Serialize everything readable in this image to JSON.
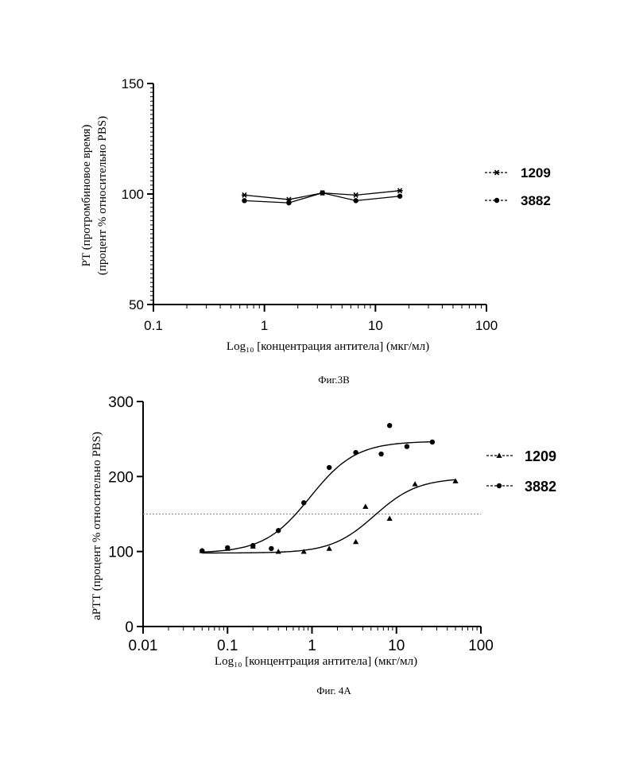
{
  "figures": [
    {
      "caption": "Фиг.3В",
      "legend": [
        "1209",
        "3882"
      ]
    },
    {
      "caption": "Фиг. 4А",
      "legend": [
        "1209",
        "3882"
      ]
    }
  ],
  "chart_data": [
    {
      "type": "line",
      "title": "",
      "xlabel": "Log₁₀ [концентрация антитела] (мкг/мл)",
      "ylabel_lines": [
        "PT (протромбиновое время)",
        "(процент % относительно PBS)"
      ],
      "xscale": "log",
      "xlim": [
        0.1,
        100
      ],
      "ylim": [
        50,
        150
      ],
      "x_ticks": [
        "0.1",
        "1",
        "10",
        "100"
      ],
      "y_ticks": [
        "50",
        "100",
        "150"
      ],
      "legend_position": "right",
      "series": [
        {
          "name": "1209",
          "marker": "star",
          "x": [
            0.66,
            1.66,
            3.33,
            6.66,
            16.6
          ],
          "y": [
            99.5,
            97.5,
            100.5,
            99.5,
            101.5
          ]
        },
        {
          "name": "3882",
          "marker": "circle",
          "x": [
            0.66,
            1.66,
            3.33,
            6.66,
            16.6
          ],
          "y": [
            97.0,
            96.0,
            100.5,
            97.0,
            99.0
          ]
        }
      ]
    },
    {
      "type": "scatter",
      "title": "",
      "xlabel": "Log₁₀ [концентрация антитела] (мкг/мл)",
      "ylabel": "aPTT (процент % относительно PBS)",
      "xscale": "log",
      "xlim": [
        0.01,
        100
      ],
      "ylim": [
        0,
        300
      ],
      "x_ticks": [
        "0.01",
        "0.1",
        "1",
        "10",
        "100"
      ],
      "y_ticks": [
        "0",
        "100",
        "200",
        "300"
      ],
      "reference_line_y": 150,
      "legend_position": "right",
      "series": [
        {
          "name": "1209",
          "marker": "triangle",
          "points": [
            [
              0.05,
              101
            ],
            [
              0.1,
              104
            ],
            [
              0.2,
              107
            ],
            [
              0.4,
              100
            ],
            [
              0.8,
              100
            ],
            [
              1.6,
              104
            ],
            [
              3.3,
              113
            ],
            [
              4.3,
              160
            ],
            [
              8.3,
              144
            ],
            [
              16.6,
              190
            ],
            [
              50,
              194
            ]
          ],
          "fit": {
            "bottom": 98,
            "top": 198,
            "ec50": 5.5,
            "hill": 1.7
          }
        },
        {
          "name": "3882",
          "marker": "circle",
          "points": [
            [
              0.05,
              101
            ],
            [
              0.1,
              105
            ],
            [
              0.2,
              108
            ],
            [
              0.33,
              104
            ],
            [
              0.4,
              128
            ],
            [
              0.8,
              165
            ],
            [
              1.6,
              212
            ],
            [
              3.3,
              232
            ],
            [
              6.6,
              230
            ],
            [
              8.3,
              268
            ],
            [
              13.3,
              240
            ],
            [
              26.6,
              246
            ]
          ],
          "fit": {
            "bottom": 98,
            "top": 247,
            "ec50": 0.95,
            "hill": 1.6
          }
        }
      ]
    }
  ]
}
